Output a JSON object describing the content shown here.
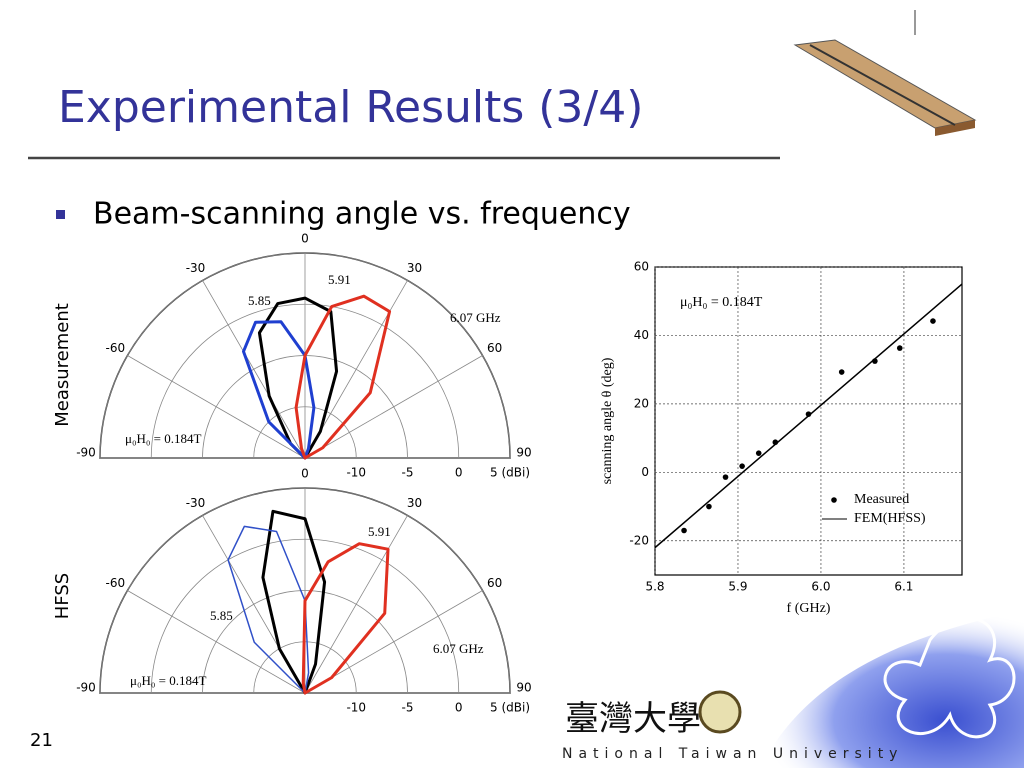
{
  "slide": {
    "title": "Experimental Results (3/4)",
    "bullet": "Beam-scanning angle vs. frequency",
    "side_labels": [
      "Measurement",
      "HFSS"
    ],
    "page_number": "21",
    "footer": "National Taiwan University",
    "logo_text": "臺灣大學"
  },
  "chart_data": [
    {
      "type": "polar",
      "theta": [
        -60,
        -45,
        -30,
        -20,
        -10,
        0,
        10,
        20,
        30,
        45,
        60
      ],
      "rlim": [
        -15,
        5
      ],
      "rticks": [
        -10,
        -5,
        0,
        {
          "value": 5,
          "label": "5 (dBi)"
        }
      ],
      "angle_ticks": [
        -90,
        -60,
        -30,
        0,
        30,
        60,
        90
      ],
      "annotation": "μ₀H₀ = 0.184T",
      "grid": true,
      "series": [
        {
          "name": "5.91",
          "color": "#000000",
          "values": [
            -15,
            -13,
            -8,
            -2,
            0.3,
            0.6,
            -0.5,
            -6,
            -12,
            -15,
            -15
          ]
        },
        {
          "name": "5.85",
          "color": "#1f3fd0",
          "values": [
            -15,
            -10,
            -3,
            -0.9,
            -1.5,
            -5,
            -10,
            -14,
            -15,
            -15,
            -15
          ]
        },
        {
          "name": "6.07 GHz",
          "color": "#e03020",
          "values": [
            -15,
            -15,
            -15,
            -14,
            -10,
            -5,
            0,
            1.8,
            1.5,
            -6,
            -13
          ]
        }
      ]
    },
    {
      "type": "polar",
      "theta": [
        -60,
        -45,
        -30,
        -20,
        -10,
        0,
        10,
        20,
        30,
        45,
        60
      ],
      "rlim": [
        -15,
        5
      ],
      "rticks": [
        -10,
        -5,
        0,
        {
          "value": 5,
          "label": "5 (dBi)"
        }
      ],
      "angle_ticks": [
        -90,
        -60,
        -30,
        0,
        30,
        60,
        90
      ],
      "annotation": "μ₀H₀ = 0.184T",
      "grid": true,
      "series": [
        {
          "name": "5.91",
          "color": "#000000",
          "values": [
            -15,
            -15,
            -10,
            -3,
            3,
            2,
            -4,
            -12,
            -15,
            -15,
            -15
          ]
        },
        {
          "name": "5.85",
          "color": "#3050c8",
          "values": [
            -15,
            -8,
            0,
            2.3,
            1,
            -6,
            -13,
            -15,
            -15,
            -15,
            -15
          ]
        },
        {
          "name": "6.07 GHz",
          "color": "#e03020",
          "values": [
            -15,
            -15,
            -15,
            -15,
            -14,
            -6,
            -2,
            0.5,
            1.2,
            -4,
            -12
          ]
        }
      ]
    },
    {
      "type": "scatter",
      "xlabel": "f (GHz)",
      "ylabel": "scanning angle θ (deg)",
      "xlim": [
        5.8,
        6.17
      ],
      "ylim": [
        -30,
        60
      ],
      "xticks": [
        5.8,
        5.9,
        {
          "value": 6,
          "label": "6.0"
        },
        6.1
      ],
      "yticks": [
        -20,
        0,
        20,
        40,
        60
      ],
      "annotation": "μ₀H₀ = 0.184T",
      "grid": true,
      "legend": "lower right",
      "series": [
        {
          "name": "Measured",
          "color": "#000000",
          "x": [
            5.835,
            5.865,
            5.885,
            5.905,
            5.925,
            5.945,
            5.985,
            6.025,
            6.065,
            6.095,
            6.135
          ],
          "values": [
            -17,
            -10,
            -1.4,
            1.8,
            5.6,
            8.8,
            17,
            29.3,
            32.5,
            36.3,
            44.2
          ]
        },
        {
          "name": "FEM(HFSS)",
          "color": "#000000",
          "x": [
            5.8,
            6.17
          ],
          "values": [
            -22,
            55
          ]
        }
      ]
    }
  ]
}
